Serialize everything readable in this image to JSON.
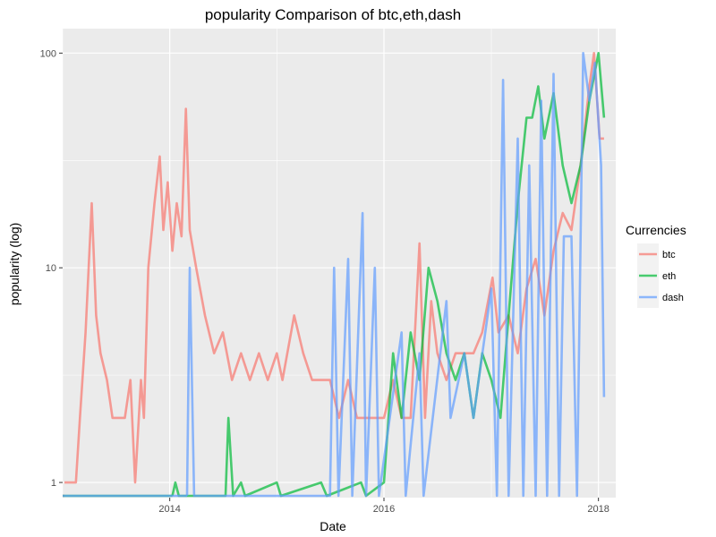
{
  "chart_data": {
    "type": "line",
    "title": "popularity Comparison of  btc,eth,dash",
    "xlabel": "Date",
    "ylabel": "popularity (log)",
    "yscale": "log",
    "ylim": [
      0.85,
      130
    ],
    "xlim": [
      "2013-01-01",
      "2018-03-01"
    ],
    "x_ticks": [
      "2014",
      "2016",
      "2018"
    ],
    "y_ticks": [
      "1",
      "10",
      "100"
    ],
    "grid": true,
    "legend": {
      "title": "Currencies",
      "position": "right"
    },
    "series": [
      {
        "name": "btc",
        "color": "#F8766D",
        "points": [
          [
            "2013-01-07",
            1
          ],
          [
            "2013-02-15",
            1
          ],
          [
            "2013-03-01",
            2
          ],
          [
            "2013-03-20",
            5
          ],
          [
            "2013-04-10",
            20
          ],
          [
            "2013-04-25",
            6
          ],
          [
            "2013-05-10",
            4
          ],
          [
            "2013-06-01",
            3
          ],
          [
            "2013-06-20",
            2
          ],
          [
            "2013-08-01",
            2
          ],
          [
            "2013-08-20",
            3
          ],
          [
            "2013-09-05",
            1
          ],
          [
            "2013-09-25",
            3
          ],
          [
            "2013-10-05",
            2
          ],
          [
            "2013-10-20",
            10
          ],
          [
            "2013-11-10",
            20
          ],
          [
            "2013-11-28",
            33
          ],
          [
            "2013-12-10",
            15
          ],
          [
            "2013-12-25",
            25
          ],
          [
            "2014-01-10",
            12
          ],
          [
            "2014-01-25",
            20
          ],
          [
            "2014-02-10",
            14
          ],
          [
            "2014-02-25",
            55
          ],
          [
            "2014-03-10",
            15
          ],
          [
            "2014-04-01",
            10
          ],
          [
            "2014-05-01",
            6
          ],
          [
            "2014-06-01",
            4
          ],
          [
            "2014-07-01",
            5
          ],
          [
            "2014-08-01",
            3
          ],
          [
            "2014-09-01",
            4
          ],
          [
            "2014-10-01",
            3
          ],
          [
            "2014-11-01",
            4
          ],
          [
            "2014-12-01",
            3
          ],
          [
            "2015-01-01",
            4
          ],
          [
            "2015-01-20",
            3
          ],
          [
            "2015-03-01",
            6
          ],
          [
            "2015-04-01",
            4
          ],
          [
            "2015-05-01",
            3
          ],
          [
            "2015-06-01",
            3
          ],
          [
            "2015-07-01",
            3
          ],
          [
            "2015-08-01",
            2
          ],
          [
            "2015-09-01",
            3
          ],
          [
            "2015-10-01",
            2
          ],
          [
            "2015-11-01",
            2
          ],
          [
            "2015-12-01",
            2
          ],
          [
            "2016-01-01",
            2
          ],
          [
            "2016-02-01",
            3
          ],
          [
            "2016-03-01",
            2
          ],
          [
            "2016-04-01",
            2
          ],
          [
            "2016-05-01",
            13
          ],
          [
            "2016-05-20",
            2
          ],
          [
            "2016-06-10",
            7
          ],
          [
            "2016-07-01",
            4
          ],
          [
            "2016-08-01",
            3
          ],
          [
            "2016-09-01",
            4
          ],
          [
            "2016-10-01",
            4
          ],
          [
            "2016-11-01",
            4
          ],
          [
            "2016-12-01",
            5
          ],
          [
            "2017-01-05",
            9
          ],
          [
            "2017-01-25",
            5
          ],
          [
            "2017-03-01",
            6
          ],
          [
            "2017-04-01",
            4
          ],
          [
            "2017-05-01",
            8
          ],
          [
            "2017-06-01",
            11
          ],
          [
            "2017-07-01",
            6
          ],
          [
            "2017-08-01",
            12
          ],
          [
            "2017-09-01",
            18
          ],
          [
            "2017-10-01",
            15
          ],
          [
            "2017-11-01",
            30
          ],
          [
            "2017-12-01",
            70
          ],
          [
            "2017-12-17",
            100
          ],
          [
            "2018-01-05",
            40
          ],
          [
            "2018-01-20",
            40
          ]
        ]
      },
      {
        "name": "eth",
        "color": "#00BA38",
        "points": [
          [
            "2014-01-10",
            0.8
          ],
          [
            "2014-01-20",
            1
          ],
          [
            "2014-02-01",
            0.8
          ],
          [
            "2014-07-10",
            0.8
          ],
          [
            "2014-07-20",
            2
          ],
          [
            "2014-08-05",
            0.8
          ],
          [
            "2014-09-01",
            1
          ],
          [
            "2014-09-15",
            0.8
          ],
          [
            "2015-01-01",
            1
          ],
          [
            "2015-01-15",
            0.8
          ],
          [
            "2015-06-01",
            1
          ],
          [
            "2015-06-20",
            0.8
          ],
          [
            "2015-10-15",
            1
          ],
          [
            "2015-11-01",
            0.8
          ],
          [
            "2016-01-01",
            1
          ],
          [
            "2016-02-01",
            4
          ],
          [
            "2016-03-01",
            2
          ],
          [
            "2016-04-01",
            5
          ],
          [
            "2016-05-01",
            3
          ],
          [
            "2016-06-01",
            10
          ],
          [
            "2016-07-01",
            7
          ],
          [
            "2016-08-01",
            4
          ],
          [
            "2016-09-01",
            3
          ],
          [
            "2016-10-01",
            4
          ],
          [
            "2016-11-01",
            2
          ],
          [
            "2016-12-01",
            4
          ],
          [
            "2017-01-01",
            3
          ],
          [
            "2017-02-01",
            2
          ],
          [
            "2017-03-01",
            6
          ],
          [
            "2017-04-01",
            20
          ],
          [
            "2017-05-01",
            50
          ],
          [
            "2017-05-20",
            50
          ],
          [
            "2017-06-10",
            70
          ],
          [
            "2017-07-01",
            40
          ],
          [
            "2017-08-01",
            65
          ],
          [
            "2017-09-01",
            30
          ],
          [
            "2017-10-01",
            20
          ],
          [
            "2017-11-01",
            30
          ],
          [
            "2017-12-01",
            60
          ],
          [
            "2018-01-01",
            100
          ],
          [
            "2018-01-20",
            50
          ]
        ]
      },
      {
        "name": "dash",
        "color": "#619CFF",
        "points": [
          [
            "2014-03-01",
            0.8
          ],
          [
            "2014-03-10",
            10
          ],
          [
            "2014-03-25",
            0.8
          ],
          [
            "2015-07-01",
            0.8
          ],
          [
            "2015-07-15",
            10
          ],
          [
            "2015-07-30",
            0.8
          ],
          [
            "2015-09-01",
            11
          ],
          [
            "2015-09-15",
            0.8
          ],
          [
            "2015-10-20",
            18
          ],
          [
            "2015-11-01",
            0.8
          ],
          [
            "2015-12-01",
            10
          ],
          [
            "2015-12-15",
            0.8
          ],
          [
            "2016-03-01",
            5
          ],
          [
            "2016-03-15",
            0.8
          ],
          [
            "2016-05-01",
            4
          ],
          [
            "2016-05-15",
            0.8
          ],
          [
            "2016-08-01",
            7
          ],
          [
            "2016-08-15",
            2
          ],
          [
            "2016-10-01",
            4
          ],
          [
            "2016-11-01",
            2
          ],
          [
            "2017-01-01",
            8
          ],
          [
            "2017-01-20",
            0.8
          ],
          [
            "2017-02-10",
            75
          ],
          [
            "2017-03-01",
            0.8
          ],
          [
            "2017-04-01",
            40
          ],
          [
            "2017-04-20",
            0.8
          ],
          [
            "2017-05-10",
            30
          ],
          [
            "2017-06-01",
            0.8
          ],
          [
            "2017-06-20",
            60
          ],
          [
            "2017-07-10",
            0.8
          ],
          [
            "2017-08-01",
            80
          ],
          [
            "2017-08-20",
            0.8
          ],
          [
            "2017-09-05",
            14
          ],
          [
            "2017-10-01",
            14
          ],
          [
            "2017-10-20",
            0.8
          ],
          [
            "2017-11-10",
            100
          ],
          [
            "2017-12-01",
            60
          ],
          [
            "2017-12-20",
            90
          ],
          [
            "2018-01-10",
            30
          ],
          [
            "2018-01-20",
            2.5
          ]
        ]
      }
    ]
  }
}
